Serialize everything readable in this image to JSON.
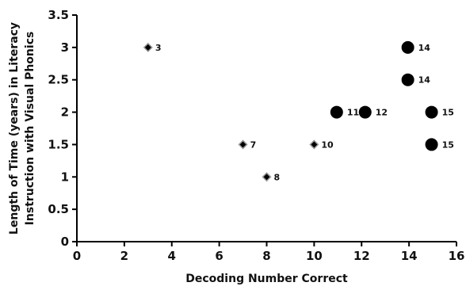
{
  "chart_data": {
    "type": "scatter",
    "title": "",
    "xlabel": "Decoding Number Correct",
    "ylabel_lines": [
      "Length of Time (years) in Literacy",
      "Instruction with Visual Phonics"
    ],
    "xlim": [
      0,
      16
    ],
    "ylim": [
      0,
      3.5
    ],
    "xticks": [
      "0",
      "2",
      "4",
      "6",
      "8",
      "10",
      "12",
      "14",
      "16"
    ],
    "yticks": [
      "0",
      "0.5",
      "1",
      "1.5",
      "2",
      "2.5",
      "3",
      "3.5"
    ],
    "grid": false,
    "legend": "none",
    "colors": {
      "marker_fill": "#000000",
      "marker_outline": "#9a9a9a",
      "axis": "#000000"
    },
    "series": [
      {
        "marker": "diamond",
        "points": [
          {
            "x": 3,
            "y": 3,
            "label": "3"
          },
          {
            "x": 7,
            "y": 1.5,
            "label": "7"
          },
          {
            "x": 8,
            "y": 1,
            "label": "8"
          },
          {
            "x": 10,
            "y": 1.5,
            "label": "10"
          }
        ]
      },
      {
        "marker": "circle",
        "points": [
          {
            "x": 10.95,
            "y": 2,
            "label": "11"
          },
          {
            "x": 12.15,
            "y": 2,
            "label": "12"
          },
          {
            "x": 13.95,
            "y": 3,
            "label": "14"
          },
          {
            "x": 13.95,
            "y": 2.5,
            "label": "14"
          },
          {
            "x": 14.95,
            "y": 2,
            "label": "15"
          },
          {
            "x": 14.95,
            "y": 1.5,
            "label": "15"
          }
        ]
      }
    ]
  }
}
